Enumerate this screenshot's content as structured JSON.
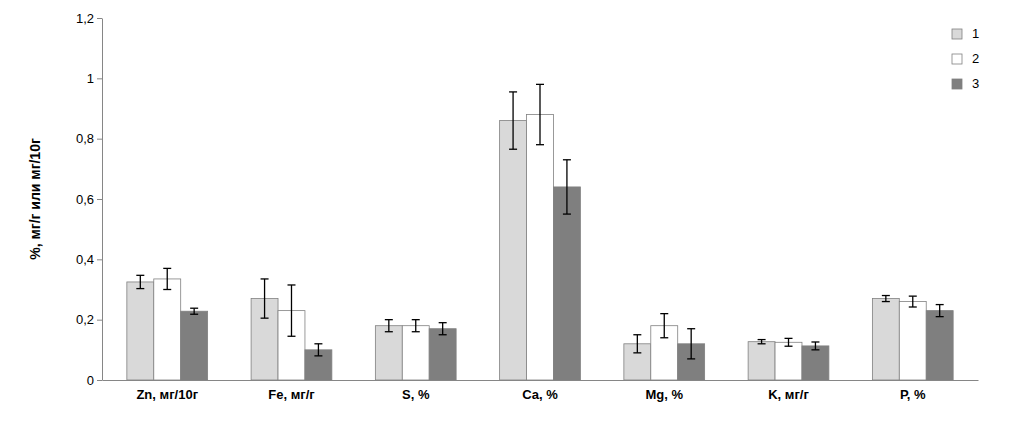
{
  "chart_data": {
    "type": "bar",
    "y_label": "%, мг/г или мг/10г",
    "categories": [
      "Zn, мг/10г",
      "Fe, мг/г",
      "S, %",
      "Ca, %",
      "Mg, %",
      "K, мг/г",
      "P, %"
    ],
    "series": [
      {
        "name": "1",
        "color": "#d9d9d9",
        "values": [
          0.325,
          0.27,
          0.18,
          0.86,
          0.12,
          0.127,
          0.27
        ],
        "errors": [
          0.022,
          0.065,
          0.02,
          0.095,
          0.03,
          0.007,
          0.01
        ]
      },
      {
        "name": "2",
        "color": "#ffffff",
        "values": [
          0.335,
          0.23,
          0.18,
          0.88,
          0.18,
          0.125,
          0.26
        ],
        "errors": [
          0.035,
          0.085,
          0.02,
          0.1,
          0.04,
          0.013,
          0.018
        ]
      },
      {
        "name": "3",
        "color": "#7f7f7f",
        "values": [
          0.228,
          0.1,
          0.17,
          0.64,
          0.12,
          0.113,
          0.23
        ],
        "errors": [
          0.01,
          0.02,
          0.02,
          0.09,
          0.05,
          0.013,
          0.02
        ]
      }
    ],
    "ylim": [
      0,
      1.2
    ],
    "yticks": [
      0,
      {
        "value": 0.2,
        "label": "0,2"
      },
      {
        "value": 0.4,
        "label": "0,4"
      },
      {
        "value": 0.6,
        "label": "0,6"
      },
      {
        "value": 0.8,
        "label": "0,8"
      },
      1,
      {
        "value": 1.2,
        "label": "1,2"
      }
    ],
    "grid": false,
    "legend": "top-right"
  }
}
